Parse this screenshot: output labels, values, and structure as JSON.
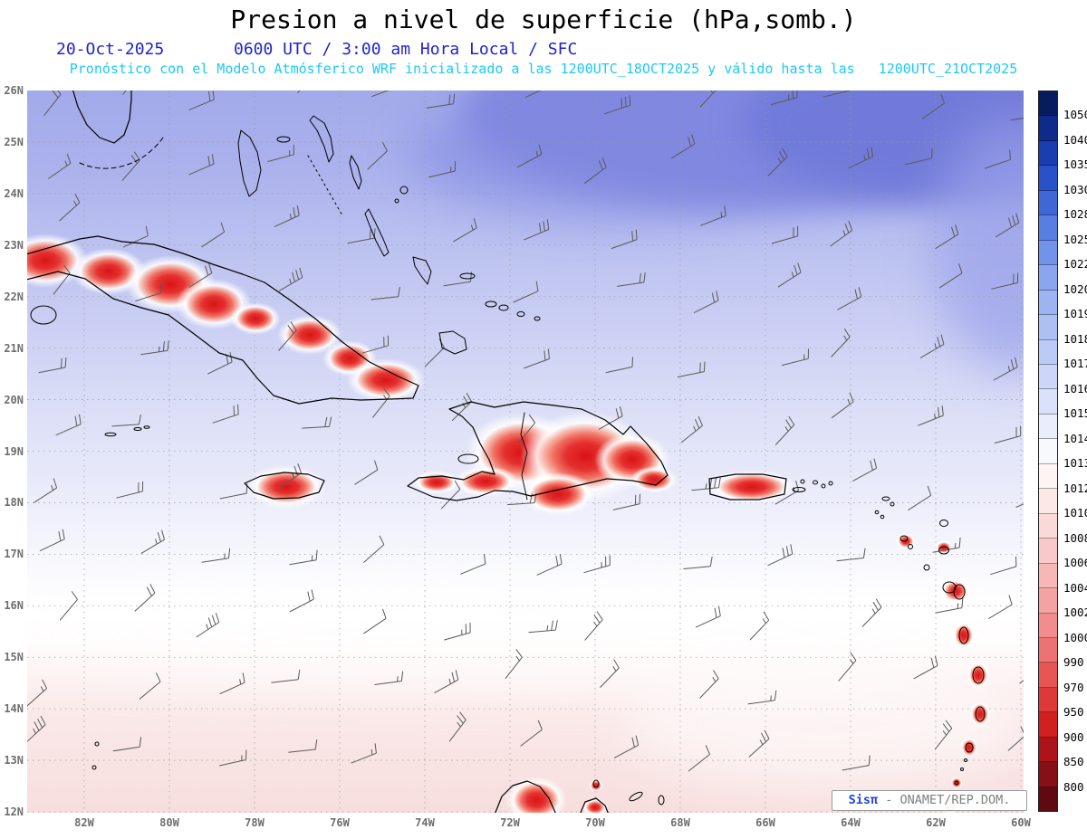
{
  "header": {
    "title": "Presion a nivel de superficie (hPa,somb.)",
    "date": "20-Oct-2025",
    "time": "0600 UTC / 3:00 am Hora Local / SFC",
    "forecast": "Pronóstico con el Modelo Atmósferico WRF inicializado a las 1200UTC_18OCT2025 y válido hasta las",
    "valid_until": "1200UTC_21OCT2025"
  },
  "axes": {
    "lat": [
      "26N",
      "25N",
      "24N",
      "23N",
      "22N",
      "21N",
      "20N",
      "19N",
      "18N",
      "17N",
      "16N",
      "15N",
      "14N",
      "13N",
      "12N"
    ],
    "lon": [
      "82W",
      "80W",
      "78W",
      "76W",
      "74W",
      "72W",
      "70W",
      "68W",
      "66W",
      "64W",
      "62W",
      "60W"
    ]
  },
  "colorbar": {
    "unit": "hPa",
    "labels": [
      "1050",
      "1040",
      "1035",
      "1030",
      "1028",
      "1025",
      "1022",
      "1020",
      "1019",
      "1018",
      "1017",
      "1016",
      "1015",
      "1014",
      "1013",
      "1012",
      "1010",
      "1008",
      "1006",
      "1004",
      "1002",
      "1000",
      "990",
      "970",
      "950",
      "900",
      "850",
      "800"
    ],
    "colors": [
      "#071c5e",
      "#0d2b8a",
      "#1a3eb0",
      "#2a52c8",
      "#3f68d6",
      "#587ee2",
      "#7392ea",
      "#8ba5ef",
      "#9db4f2",
      "#adc0f4",
      "#bccbf6",
      "#cbd6f8",
      "#dae1fa",
      "#e9edfc",
      "#f8f9fe",
      "#fef4f4",
      "#fde8e8",
      "#fbd9d9",
      "#f9c9c9",
      "#f7b7b7",
      "#f4a3a3",
      "#f18d8d",
      "#ed7272",
      "#e75555",
      "#df3838",
      "#d02020",
      "#ad141a",
      "#851016",
      "#5e0a10"
    ]
  },
  "watermark": {
    "brand": "Sisπ",
    "suffix": " - ONAMET/REP.DOM."
  }
}
